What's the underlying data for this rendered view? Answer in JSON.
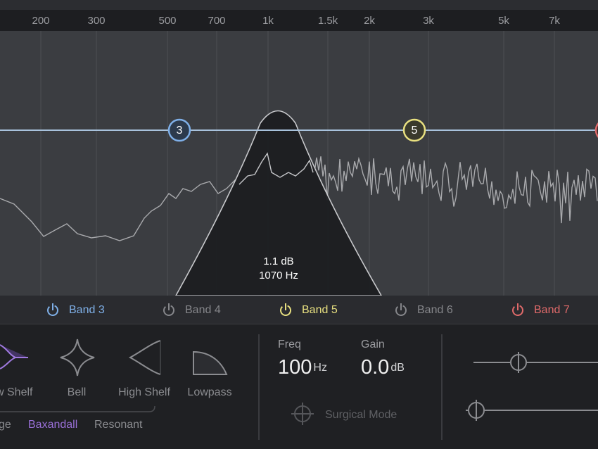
{
  "frequency_axis": {
    "labels": [
      "200",
      "300",
      "500",
      "700",
      "1k",
      "1.5k",
      "2k",
      "3k",
      "5k",
      "7k"
    ]
  },
  "band_nodes": [
    {
      "label": "3"
    },
    {
      "label": "5"
    }
  ],
  "readout": {
    "gain": "1.1 dB",
    "frequency": "1070 Hz"
  },
  "bands": [
    {
      "label": "Band 3"
    },
    {
      "label": "Band 4"
    },
    {
      "label": "Band 5"
    },
    {
      "label": "Band 6"
    },
    {
      "label": "Band 7"
    }
  ],
  "filter_shapes": {
    "types": [
      "w Shelf",
      "Bell",
      "High Shelf",
      "Lowpass"
    ],
    "modes": [
      "ge",
      "Baxandall",
      "Resonant"
    ]
  },
  "parameters": {
    "freq": {
      "label": "Freq",
      "value": "100",
      "unit": "Hz"
    },
    "gain": {
      "label": "Gain",
      "value": "0.0",
      "unit": "dB"
    }
  },
  "surgical_mode": {
    "label": "Surgical Mode"
  }
}
